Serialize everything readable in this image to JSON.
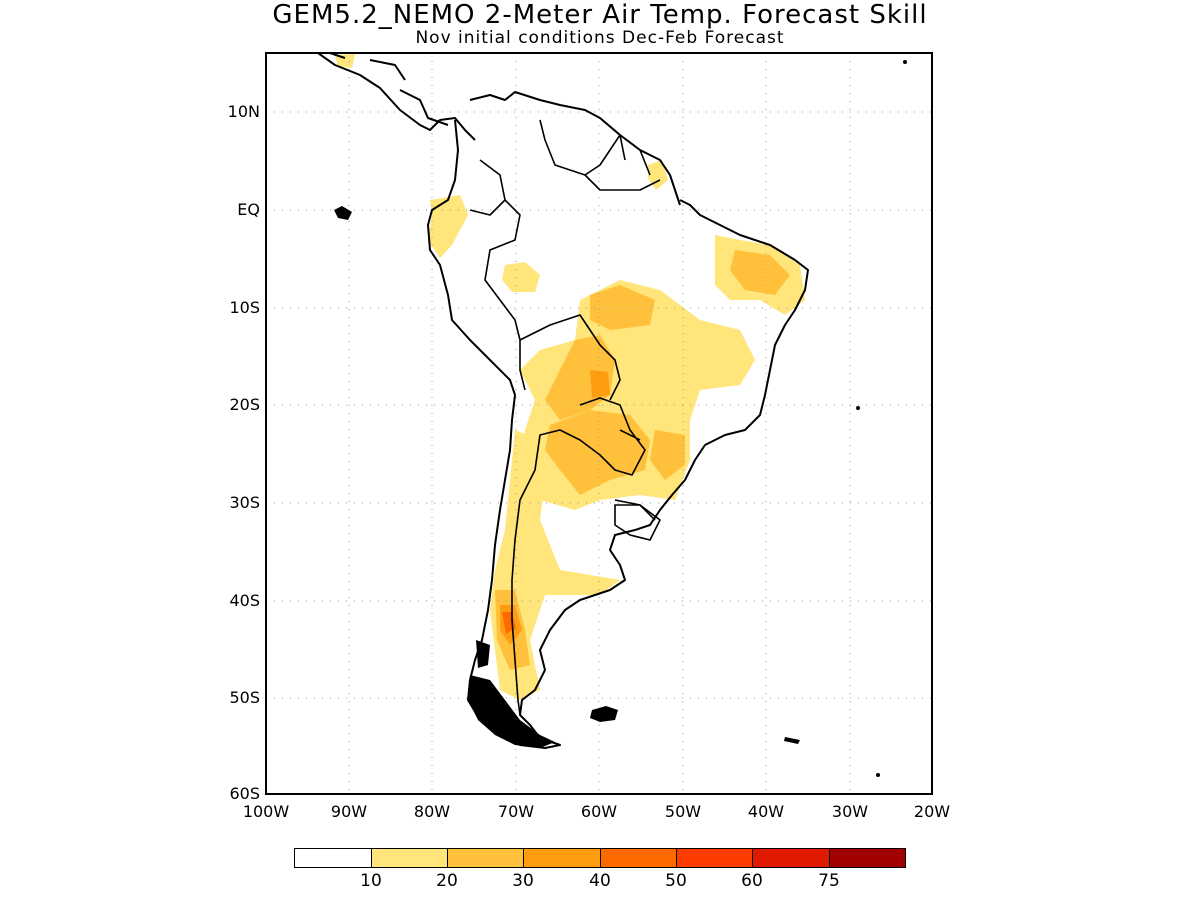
{
  "title": "GEM5.2_NEMO 2-Meter Air Temp. Forecast Skill",
  "subtitle": "Nov initial conditions  Dec-Feb Forecast",
  "lat_ticks": [
    "10N",
    "EQ",
    "10S",
    "20S",
    "30S",
    "40S",
    "50S",
    "60S"
  ],
  "lon_ticks": [
    "100W",
    "90W",
    "80W",
    "70W",
    "60W",
    "50W",
    "40W",
    "30W",
    "20W"
  ],
  "colorbar": {
    "labels": [
      "10",
      "20",
      "30",
      "40",
      "50",
      "60",
      "75"
    ],
    "colors": [
      "#ffffff",
      "#ffe57a",
      "#ffc03c",
      "#ff9d10",
      "#ff6a00",
      "#ff3c00",
      "#e01a00",
      "#a00000"
    ]
  },
  "map": {
    "region": "South America",
    "lon_range": [
      -100,
      -20
    ],
    "lat_range": [
      -60,
      16
    ],
    "grid": "dotted",
    "colors": {
      "land_outline": "#000000",
      "ocean": "#ffffff"
    }
  }
}
